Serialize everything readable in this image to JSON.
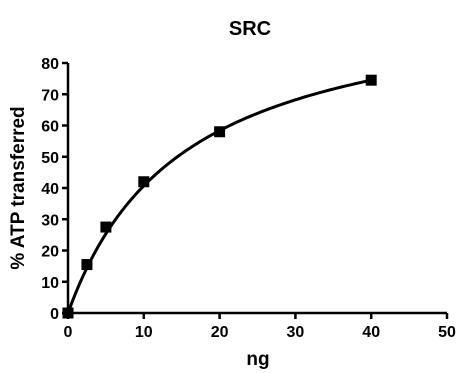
{
  "chart_data": {
    "type": "scatter",
    "title": "SRC",
    "xlabel": "ng",
    "ylabel": "% ATP transferred",
    "xlim": [
      0,
      50
    ],
    "ylim": [
      0,
      80
    ],
    "x_ticks": [
      0,
      10,
      20,
      30,
      40,
      50
    ],
    "y_ticks": [
      0,
      10,
      20,
      30,
      40,
      50,
      60,
      70,
      80
    ],
    "grid": false,
    "series": [
      {
        "points": [
          {
            "x": 0,
            "y": 0
          },
          {
            "x": 2.5,
            "y": 15.5
          },
          {
            "x": 5,
            "y": 27.5
          },
          {
            "x": 10,
            "y": 42
          },
          {
            "x": 20,
            "y": 58
          },
          {
            "x": 40,
            "y": 74.5
          }
        ],
        "marker": "square",
        "color": "#000000",
        "fit": {
          "type": "hyperbolic",
          "ymax": 103,
          "k": 15.3
        }
      }
    ]
  }
}
